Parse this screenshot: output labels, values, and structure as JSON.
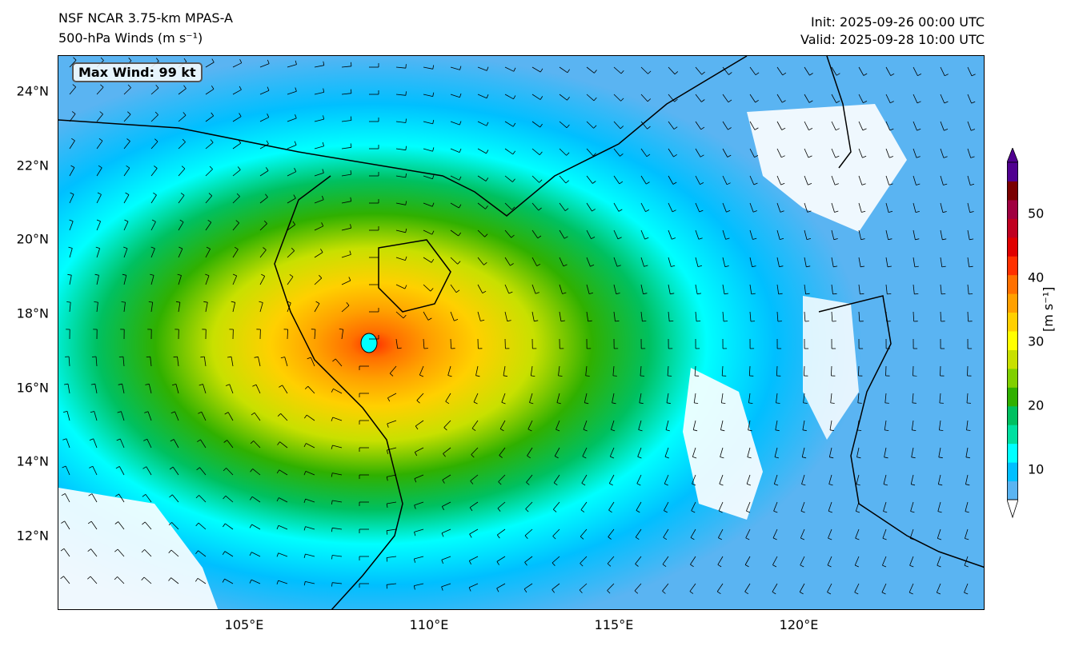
{
  "header": {
    "title": "NSF NCAR 3.75-km MPAS-A",
    "subtitle": "500-hPa Winds (m s⁻¹)",
    "init": "Init: 2025-09-26 00:00 UTC",
    "valid": "Valid: 2025-09-28 10:00 UTC"
  },
  "annotation": {
    "max_wind": "Max Wind: 99 kt"
  },
  "axes": {
    "lat_labels": [
      "24°N",
      "22°N",
      "20°N",
      "18°N",
      "16°N",
      "14°N",
      "12°N"
    ],
    "lon_labels": [
      "105°E",
      "110°E",
      "115°E",
      "120°E"
    ]
  },
  "colorbar": {
    "ticks": [
      "10",
      "20",
      "30",
      "40",
      "50"
    ],
    "unit": "[m s⁻¹]",
    "colors": [
      "#5ab4f2",
      "#00bfff",
      "#00ffff",
      "#00e0a0",
      "#00c060",
      "#30b000",
      "#80d000",
      "#c8e000",
      "#ffff00",
      "#ffd000",
      "#ffa000",
      "#ff7000",
      "#ff3000",
      "#e00000",
      "#c00020",
      "#a00040",
      "#7a0000",
      "#500090"
    ]
  },
  "storm_center": {
    "lat": 17.2,
    "lon": 108.4
  }
}
